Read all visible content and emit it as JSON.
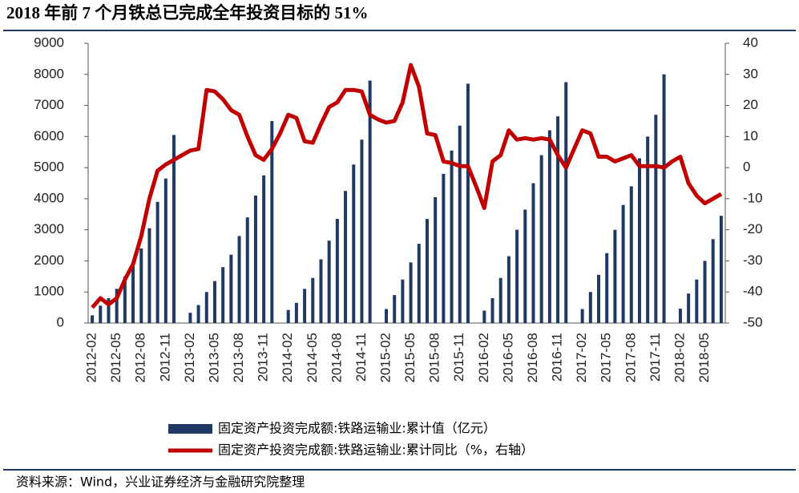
{
  "chart_data": {
    "type": "bar_line",
    "title": "2018 年前 7 个月铁总已完成全年投资目标的 51%",
    "source": "资料来源：Wind，兴业证券经济与金融研究院整理",
    "categories": [
      "2012-02",
      null,
      null,
      "2012-05",
      null,
      null,
      "2012-08",
      null,
      null,
      "2012-11",
      null,
      null,
      "2013-02",
      null,
      null,
      "2013-05",
      null,
      null,
      "2013-08",
      null,
      null,
      "2013-11",
      null,
      null,
      "2014-02",
      null,
      null,
      "2014-05",
      null,
      null,
      "2014-08",
      null,
      null,
      "2014-11",
      null,
      null,
      "2015-02",
      null,
      null,
      "2015-05",
      null,
      null,
      "2015-08",
      null,
      null,
      "2015-11",
      null,
      null,
      "2016-02",
      null,
      null,
      "2016-05",
      null,
      null,
      "2016-08",
      null,
      null,
      "2016-11",
      null,
      null,
      "2017-02",
      null,
      null,
      "2017-05",
      null,
      null,
      "2017-08",
      null,
      null,
      "2017-11",
      null,
      null,
      "2018-02",
      null,
      null,
      "2018-05",
      null,
      null
    ],
    "series": [
      {
        "name": "固定资产投资完成额:铁路运输业:累计值（亿元）",
        "type": "bar",
        "color": "#1f3864",
        "axis": "y",
        "values": [
          250,
          560,
          800,
          1100,
          1500,
          1900,
          2400,
          3050,
          3900,
          4650,
          6050,
          null,
          330,
          580,
          1000,
          1350,
          1800,
          2200,
          2800,
          3400,
          4100,
          4750,
          6500,
          null,
          420,
          650,
          1100,
          1450,
          2050,
          2650,
          3350,
          4250,
          5100,
          5900,
          7800,
          null,
          450,
          900,
          1400,
          1950,
          2550,
          3350,
          4050,
          4800,
          5550,
          6350,
          7700,
          null,
          400,
          800,
          1450,
          2150,
          3000,
          3650,
          4500,
          5400,
          6200,
          6650,
          7750,
          null,
          450,
          1000,
          1550,
          2250,
          3000,
          3800,
          4400,
          5300,
          6000,
          6700,
          8000,
          null,
          460,
          950,
          1400,
          2000,
          2700,
          3450
        ]
      },
      {
        "name": "固定资产投资完成额:铁路运输业:累计同比（%，右轴）",
        "type": "line",
        "color": "#c00000",
        "axis": "y2",
        "values": [
          -45,
          -42,
          -44,
          -42,
          -36,
          -31,
          -22,
          -10,
          -1,
          1,
          2.5,
          4,
          5.5,
          6,
          25,
          24.5,
          22,
          18.5,
          17,
          10,
          4,
          2.5,
          6,
          11,
          17,
          16,
          8.5,
          8,
          14,
          19.5,
          21,
          25,
          25,
          24.5,
          17,
          15.5,
          14.5,
          15,
          21,
          33,
          26,
          11,
          10.5,
          2,
          1.5,
          0.5,
          0.5,
          -6,
          -13,
          2,
          4,
          12,
          9,
          9.5,
          9,
          9.5,
          9,
          4,
          0,
          6,
          12,
          11,
          3.5,
          3.5,
          2,
          3,
          4,
          0.5,
          0.5,
          0.5,
          0,
          2,
          3.5,
          -5,
          -9,
          -11.5,
          -10,
          -8.5
        ]
      }
    ],
    "ylim": [
      0,
      9000
    ],
    "yticks": [
      0,
      1000,
      2000,
      3000,
      4000,
      5000,
      6000,
      7000,
      8000,
      9000
    ],
    "y2lim": [
      -50,
      40
    ],
    "y2ticks": [
      -50,
      -40,
      -30,
      -20,
      -10,
      0,
      10,
      20,
      30,
      40
    ]
  }
}
